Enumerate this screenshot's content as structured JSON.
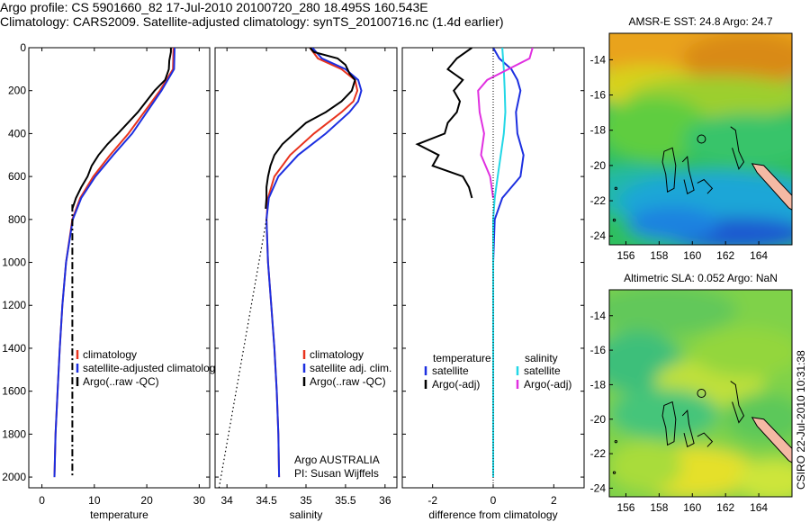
{
  "header": {
    "line1": "Argo profile: CS 5901660_82 17-Jul-2010 20100720_280 18.495S 160.543E",
    "line2": "Climatology: CARS2009. Satellite-adjusted climatology: synTS_20100716.nc (1.4d earlier)"
  },
  "colors": {
    "climatology": "#e8331e",
    "satellite": "#1c2fe0",
    "argo": "#000000",
    "sal_sat": "#22d7e6",
    "sal_argo": "#e030e0",
    "dotted": "#000000"
  },
  "chart_data": [
    {
      "id": "temperature",
      "type": "line",
      "xlabel": "temperature",
      "ylabel": "",
      "xlim": [
        -2.5,
        32
      ],
      "ylim": [
        2050,
        0
      ],
      "xticks": [
        0,
        10,
        20,
        30
      ],
      "yticks": [
        0,
        200,
        400,
        600,
        800,
        1000,
        1200,
        1400,
        1600,
        1800,
        2000
      ],
      "legend": {
        "position": "bottom-right",
        "entries": [
          "climatology",
          "satellite-adjusted climatology",
          "Argo(..raw -QC)"
        ]
      },
      "series": [
        {
          "name": "climatology",
          "color": "#e8331e",
          "y": [
            0,
            100,
            200,
            300,
            400,
            500,
            600,
            700,
            800,
            1000,
            1200,
            1400,
            1600,
            1800,
            2000
          ],
          "x": [
            25.1,
            25.0,
            22.5,
            19.5,
            16.5,
            13.0,
            9.8,
            7.3,
            5.8,
            4.6,
            3.9,
            3.4,
            3.0,
            2.6,
            2.4
          ]
        },
        {
          "name": "satellite-adjusted climatology",
          "color": "#1c2fe0",
          "y": [
            0,
            100,
            200,
            300,
            400,
            500,
            600,
            700,
            800,
            1000,
            1200,
            1400,
            1600,
            1800,
            2000
          ],
          "x": [
            25.3,
            25.2,
            22.8,
            20.0,
            17.2,
            13.6,
            10.2,
            7.5,
            5.9,
            4.6,
            3.9,
            3.4,
            3.0,
            2.6,
            2.4
          ]
        },
        {
          "name": "Argo(..raw -QC)",
          "color": "#000000",
          "y": [
            0,
            20,
            60,
            100,
            150,
            200,
            300,
            400,
            450,
            500,
            550,
            600,
            650,
            700,
            750
          ],
          "x": [
            24.6,
            24.6,
            24.3,
            24.2,
            23.5,
            21.5,
            18.3,
            14.5,
            12.5,
            10.8,
            9.5,
            8.7,
            7.5,
            6.5,
            5.8
          ]
        },
        {
          "name": "Argo dash-dot",
          "color": "#000000",
          "style": "dashdot",
          "y": [
            730,
            2000
          ],
          "x": [
            5.8,
            5.8
          ]
        }
      ]
    },
    {
      "id": "salinity",
      "type": "line",
      "xlabel": "salinity",
      "ylabel": "",
      "xlim": [
        33.85,
        36.15
      ],
      "ylim": [
        2050,
        0
      ],
      "xticks": [
        34,
        34.5,
        35,
        35.5,
        36
      ],
      "xtick_labels": [
        "34",
        "34.5",
        "35",
        "35.5",
        "36"
      ],
      "legend": {
        "position": "bottom-right",
        "entries": [
          "climatology",
          "satellite adj. clim.",
          "Argo(..raw -QC)"
        ]
      },
      "annotation": [
        "Argo AUSTRALIA",
        "PI: Susan Wijffels"
      ],
      "series": [
        {
          "name": "climatology",
          "color": "#e8331e",
          "y": [
            0,
            50,
            100,
            150,
            200,
            250,
            300,
            400,
            500,
            600,
            700,
            800,
            1000,
            1200,
            1400,
            1600,
            1800,
            2000
          ],
          "x": [
            35.05,
            35.15,
            35.45,
            35.62,
            35.65,
            35.6,
            35.45,
            35.1,
            34.8,
            34.6,
            34.52,
            34.5,
            34.52,
            34.56,
            34.6,
            34.63,
            34.65,
            34.66
          ]
        },
        {
          "name": "satellite adj. clim.",
          "color": "#1c2fe0",
          "y": [
            0,
            50,
            100,
            150,
            200,
            250,
            300,
            400,
            500,
            600,
            700,
            800,
            1000,
            1200,
            1400,
            1600,
            1800,
            2000
          ],
          "x": [
            35.08,
            35.2,
            35.5,
            35.66,
            35.7,
            35.66,
            35.55,
            35.25,
            34.9,
            34.65,
            34.53,
            34.5,
            34.52,
            34.56,
            34.6,
            34.63,
            34.65,
            34.66
          ]
        },
        {
          "name": "Argo(..raw -QC)",
          "color": "#000000",
          "y": [
            0,
            20,
            50,
            80,
            120,
            150,
            200,
            250,
            300,
            350,
            400,
            450,
            500,
            550,
            600,
            650,
            700,
            750
          ],
          "x": [
            35.05,
            35.1,
            35.4,
            35.5,
            35.55,
            35.62,
            35.58,
            35.45,
            35.25,
            35.0,
            34.85,
            34.7,
            34.6,
            34.55,
            34.52,
            34.5,
            34.5,
            34.49
          ]
        },
        {
          "name": "dotted",
          "color": "#000000",
          "style": "dotted",
          "y": [
            800,
            2050
          ],
          "x": [
            34.5,
            33.9
          ]
        }
      ]
    },
    {
      "id": "difference",
      "type": "line",
      "xlabel": "difference from climatology",
      "ylabel": "",
      "xlim": [
        -3,
        3
      ],
      "ylim": [
        2050,
        0
      ],
      "xticks": [
        -2,
        0,
        2
      ],
      "xtick_labels": [
        "-2",
        "0",
        "2"
      ],
      "legend": {
        "position": "bottom",
        "groups": [
          {
            "title": "temperature",
            "entries": [
              "satellite",
              "Argo(-adj)"
            ]
          },
          {
            "title": "salinity",
            "entries": [
              "satellite",
              "Argo(-adj)"
            ]
          }
        ]
      },
      "series": [
        {
          "name": "temp satellite",
          "color": "#1c2fe0",
          "y": [
            0,
            50,
            100,
            150,
            200,
            300,
            400,
            500,
            600,
            700,
            800,
            1000,
            2000
          ],
          "x": [
            0,
            0.2,
            0.6,
            0.8,
            0.9,
            0.75,
            0.8,
            1.0,
            0.9,
            0.3,
            0.05,
            0,
            0
          ]
        },
        {
          "name": "temp Argo(-adj)",
          "color": "#000000",
          "y": [
            0,
            50,
            100,
            150,
            200,
            250,
            300,
            350,
            400,
            450,
            500,
            550,
            600,
            650,
            700
          ],
          "x": [
            -0.7,
            -1.2,
            -1.5,
            -1.0,
            -1.3,
            -1.1,
            -1.2,
            -1.5,
            -1.6,
            -2.5,
            -1.8,
            -2.0,
            -1.0,
            -0.8,
            -0.7
          ]
        },
        {
          "name": "sal satellite",
          "color": "#22d7e6",
          "y": [
            0,
            100,
            200,
            300,
            400,
            500,
            600,
            700,
            800,
            1000,
            2000
          ],
          "x": [
            0.3,
            0.35,
            0.38,
            0.4,
            0.35,
            0.25,
            0.15,
            0.05,
            0,
            0,
            0
          ]
        },
        {
          "name": "sal Argo(-adj)",
          "color": "#e030e0",
          "y": [
            0,
            50,
            100,
            150,
            200,
            300,
            400,
            500,
            600,
            700
          ],
          "x": [
            1.3,
            1.2,
            0.5,
            -0.2,
            -0.5,
            -0.45,
            -0.3,
            -0.4,
            -0.1,
            0
          ]
        }
      ]
    },
    {
      "id": "sst-map",
      "type": "heatmap",
      "title": "AMSR-E SST: 24.8 Argo: 24.7",
      "xticks": [
        156,
        158,
        160,
        162,
        164
      ],
      "yticks": [
        -14,
        -16,
        -18,
        -20,
        -22,
        -24
      ],
      "xlim": [
        155,
        166
      ],
      "ylim": [
        -24.5,
        -12.5
      ]
    },
    {
      "id": "sla-map",
      "type": "heatmap",
      "title": "Altimetric SLA: 0.052 Argo: NaN",
      "xticks": [
        156,
        158,
        160,
        162,
        164
      ],
      "yticks": [
        -14,
        -16,
        -18,
        -20,
        -22,
        -24
      ],
      "xlim": [
        155,
        166
      ],
      "ylim": [
        -24.5,
        -12.5
      ],
      "side_label": "CSIRO 22-Jul-2010 10:31:38"
    }
  ]
}
